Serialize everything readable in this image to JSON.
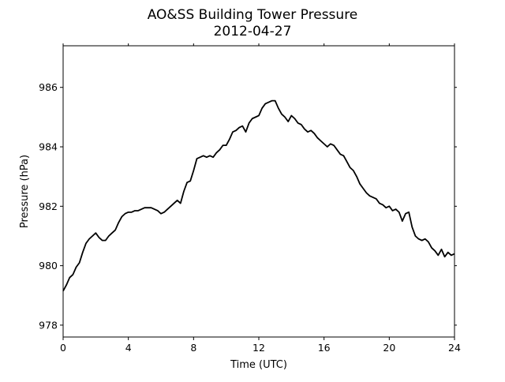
{
  "chart_data": {
    "type": "line",
    "title": "AO&SS Building Tower Pressure",
    "subtitle": "2012-04-27",
    "xlabel": "Time (UTC)",
    "ylabel": "Pressure (hPa)",
    "xlim": [
      0,
      24
    ],
    "ylim": [
      977.6,
      987.4
    ],
    "xticks": [
      0,
      4,
      8,
      12,
      16,
      20,
      24
    ],
    "yticks": [
      978,
      980,
      982,
      984,
      986
    ],
    "grid": false,
    "line_color": "#000000",
    "series": [
      {
        "x": [
          0,
          0.2,
          0.4,
          0.6,
          0.8,
          1.0,
          1.2,
          1.4,
          1.6,
          1.8,
          2.0,
          2.2,
          2.4,
          2.6,
          2.8,
          3.0,
          3.2,
          3.4,
          3.6,
          3.8,
          4.0,
          4.2,
          4.4,
          4.6,
          4.8,
          5.0,
          5.2,
          5.4,
          5.6,
          5.8,
          6.0,
          6.2,
          6.4,
          6.6,
          6.8,
          7.0,
          7.2,
          7.4,
          7.6,
          7.8,
          8.0,
          8.2,
          8.4,
          8.6,
          8.8,
          9.0,
          9.2,
          9.4,
          9.6,
          9.8,
          10.0,
          10.2,
          10.4,
          10.6,
          10.8,
          11.0,
          11.2,
          11.4,
          11.6,
          11.8,
          12.0,
          12.2,
          12.4,
          12.6,
          12.8,
          13.0,
          13.2,
          13.4,
          13.6,
          13.8,
          14.0,
          14.2,
          14.4,
          14.6,
          14.8,
          15.0,
          15.2,
          15.4,
          15.6,
          15.8,
          16.0,
          16.2,
          16.4,
          16.6,
          16.8,
          17.0,
          17.2,
          17.4,
          17.6,
          17.8,
          18.0,
          18.2,
          18.4,
          18.6,
          18.8,
          19.0,
          19.2,
          19.4,
          19.6,
          19.8,
          20.0,
          20.2,
          20.4,
          20.6,
          20.8,
          21.0,
          21.2,
          21.4,
          21.6,
          21.8,
          22.0,
          22.2,
          22.4,
          22.6,
          22.8,
          23.0,
          23.2,
          23.4,
          23.6,
          23.8,
          24.0
        ],
        "y": [
          979.15,
          979.35,
          979.6,
          979.7,
          979.95,
          980.1,
          980.45,
          980.75,
          980.9,
          981.0,
          981.1,
          980.95,
          980.85,
          980.85,
          981.0,
          981.1,
          981.2,
          981.45,
          981.65,
          981.75,
          981.8,
          981.8,
          981.85,
          981.85,
          981.9,
          981.95,
          981.95,
          981.95,
          981.9,
          981.85,
          981.75,
          981.8,
          981.9,
          982.0,
          982.1,
          982.2,
          982.1,
          982.5,
          982.8,
          982.85,
          983.2,
          983.6,
          983.65,
          983.7,
          983.65,
          983.7,
          983.65,
          983.8,
          983.9,
          984.05,
          984.05,
          984.25,
          984.5,
          984.55,
          984.65,
          984.7,
          984.5,
          984.8,
          984.95,
          985.0,
          985.05,
          985.3,
          985.45,
          985.5,
          985.55,
          985.55,
          985.3,
          985.1,
          985.0,
          984.85,
          985.05,
          984.95,
          984.8,
          984.75,
          984.6,
          984.5,
          984.55,
          984.45,
          984.3,
          984.2,
          984.1,
          984.0,
          984.1,
          984.05,
          983.9,
          983.75,
          983.7,
          983.5,
          983.3,
          983.2,
          983.0,
          982.75,
          982.6,
          982.45,
          982.35,
          982.3,
          982.25,
          982.1,
          982.05,
          981.95,
          982.0,
          981.85,
          981.9,
          981.8,
          981.5,
          981.75,
          981.8,
          981.3,
          981.0,
          980.9,
          980.85,
          980.9,
          980.8,
          980.6,
          980.5,
          980.35,
          980.55,
          980.3,
          980.45,
          980.35,
          980.4
        ]
      }
    ]
  }
}
